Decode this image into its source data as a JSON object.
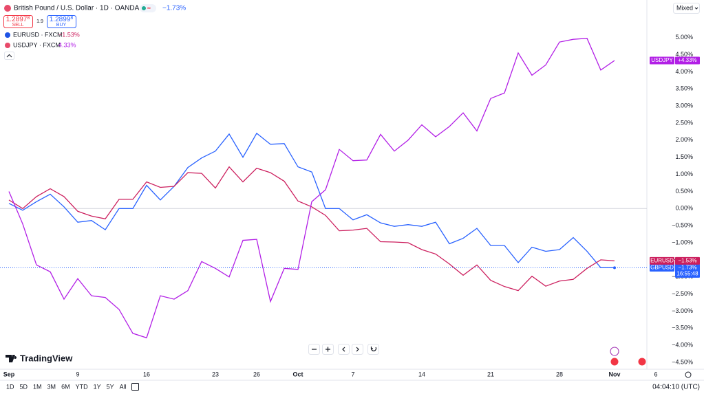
{
  "header": {
    "symbol": "British Pound / U.S. Dollar · 1D · OANDA",
    "change": "−1.73%",
    "sell_price": "1.2897",
    "sell_price_sup": "8",
    "sell": "SELL",
    "spread": "1.9",
    "buy_price": "1.2899",
    "buy_price_sup": "8",
    "buy": "BUY",
    "scale_mode": "Mixed"
  },
  "compare": [
    {
      "symbol": "EURUSD · FXCM",
      "change": "−1.53%"
    },
    {
      "symbol": "USDJPY · FXCM",
      "change": "4.33%"
    }
  ],
  "chart_data": {
    "type": "line",
    "categories": [
      "Sep",
      null,
      null,
      null,
      null,
      "9",
      null,
      null,
      null,
      null,
      "16",
      null,
      null,
      null,
      null,
      "23",
      null,
      null,
      "26",
      null,
      null,
      "Oct",
      null,
      null,
      null,
      "7",
      null,
      null,
      null,
      null,
      "14",
      null,
      null,
      null,
      null,
      "21",
      null,
      null,
      null,
      null,
      "28",
      null,
      null,
      null,
      "Nov",
      null,
      null,
      "6"
    ],
    "series": [
      {
        "name": "GBPUSD",
        "color": "#2962ff",
        "badge_label": "−1.73%",
        "countdown": "16:55:48",
        "values": [
          0.15,
          -0.05,
          0.2,
          0.42,
          0.05,
          -0.4,
          -0.35,
          -0.62,
          0.0,
          0.0,
          0.68,
          0.25,
          0.65,
          1.2,
          1.48,
          1.68,
          2.18,
          1.5,
          2.2,
          1.88,
          1.9,
          1.22,
          1.07,
          0.0,
          0.0,
          -0.33,
          -0.18,
          -0.42,
          -0.52,
          -0.47,
          -0.52,
          -0.4,
          -1.03,
          -0.87,
          -0.58,
          -1.08,
          -1.08,
          -1.58,
          -1.13,
          -1.25,
          -1.2,
          -0.85,
          -1.25,
          -1.73,
          -1.73,
          null,
          null,
          null
        ]
      },
      {
        "name": "EURUSD",
        "color": "#cc1f5e",
        "badge_label": "−1.53%",
        "values": [
          0.25,
          0.0,
          0.35,
          0.58,
          0.35,
          -0.08,
          -0.22,
          -0.3,
          0.27,
          0.27,
          0.78,
          0.62,
          0.65,
          1.05,
          1.03,
          0.6,
          1.22,
          0.78,
          1.18,
          1.05,
          0.8,
          0.22,
          0.05,
          -0.2,
          -0.65,
          -0.63,
          -0.58,
          -0.97,
          -0.98,
          -1.0,
          -1.2,
          -1.33,
          -1.62,
          -1.95,
          -1.65,
          -2.1,
          -2.28,
          -2.4,
          -1.98,
          -2.27,
          -2.12,
          -2.07,
          -1.75,
          -1.5,
          -1.53,
          null,
          null,
          null
        ]
      },
      {
        "name": "USDJPY",
        "color": "#b21fe6",
        "badge_label": "+4.33%",
        "values": [
          0.5,
          -0.45,
          -1.65,
          -1.85,
          -2.65,
          -2.05,
          -2.55,
          -2.6,
          -2.95,
          -3.65,
          -3.78,
          -2.55,
          -2.65,
          -2.4,
          -1.55,
          -1.75,
          -2.0,
          -0.93,
          -0.9,
          -2.72,
          -1.75,
          -1.78,
          0.2,
          0.55,
          1.73,
          1.4,
          1.42,
          2.17,
          1.68,
          2.0,
          2.45,
          2.1,
          2.4,
          2.8,
          2.27,
          3.22,
          3.38,
          4.55,
          3.9,
          4.2,
          4.87,
          4.95,
          4.98,
          4.05,
          4.33,
          null,
          null,
          null
        ]
      }
    ],
    "ylim": [
      -4.7,
      6.1
    ],
    "yticks": [
      {
        "value": 5,
        "label": "5.00%"
      },
      {
        "value": 4.5,
        "label": "4.50%"
      },
      {
        "value": 4,
        "label": "4.00%"
      },
      {
        "value": 3.5,
        "label": "3.50%"
      },
      {
        "value": 3,
        "label": "3.00%"
      },
      {
        "value": 2.5,
        "label": "2.50%"
      },
      {
        "value": 2,
        "label": "2.00%"
      },
      {
        "value": 1.5,
        "label": "1.50%"
      },
      {
        "value": 1,
        "label": "1.00%"
      },
      {
        "value": 0.5,
        "label": "0.50%"
      },
      {
        "value": 0,
        "label": "0.00%"
      },
      {
        "value": -0.5,
        "label": "−0.50%"
      },
      {
        "value": -1,
        "label": "−1.00%"
      },
      {
        "value": -1.5,
        "label": "−1.50%"
      },
      {
        "value": -2,
        "label": "−2.00%"
      },
      {
        "value": -2.5,
        "label": "−2.50%"
      },
      {
        "value": -3,
        "label": "−3.00%"
      },
      {
        "value": -3.5,
        "label": "−3.50%"
      },
      {
        "value": -4,
        "label": "−4.00%"
      },
      {
        "value": -4.5,
        "label": "−4.50%"
      }
    ],
    "grid": false
  },
  "footer": {
    "logo": "TradingView",
    "ranges": [
      "1D",
      "5D",
      "1M",
      "3M",
      "6M",
      "YTD",
      "1Y",
      "5Y",
      "All"
    ],
    "time": "04:04:10 (UTC)"
  }
}
